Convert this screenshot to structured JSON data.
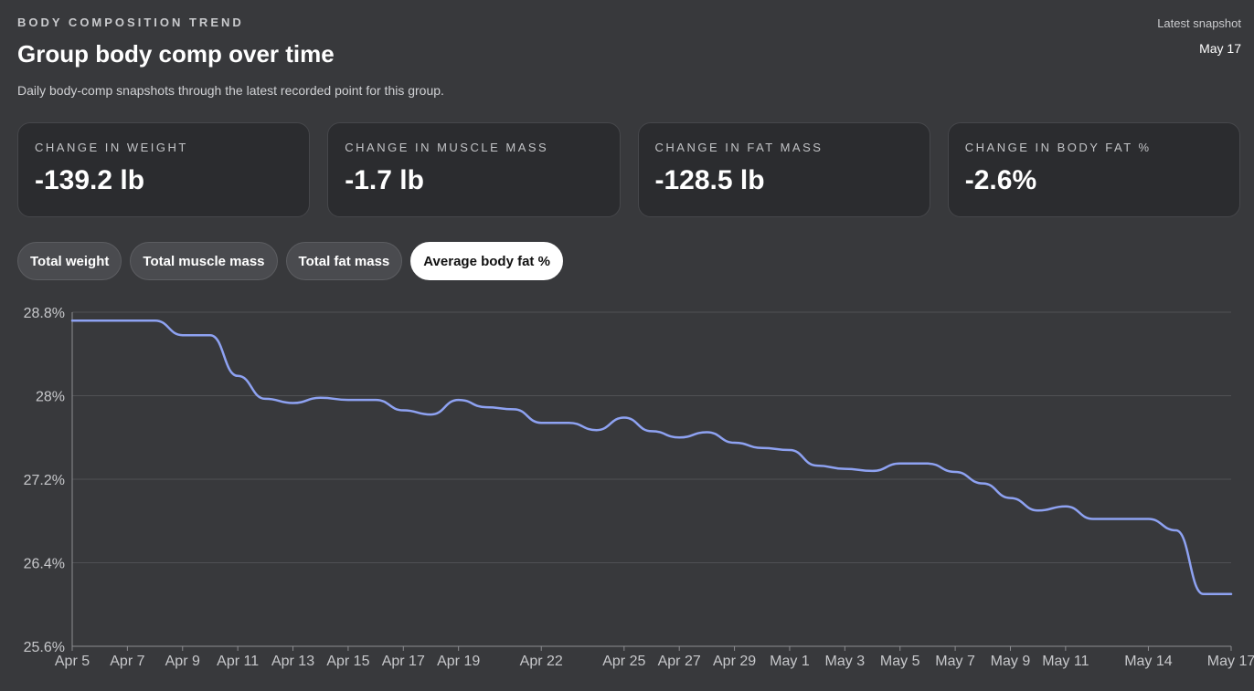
{
  "header": {
    "eyebrow": "BODY COMPOSITION TREND",
    "title": "Group body comp over time",
    "subtitle": "Daily body-comp snapshots through the latest recorded point for this group.",
    "snapshot_label": "Latest snapshot",
    "snapshot_value": "May 17"
  },
  "cards": [
    {
      "label": "CHANGE IN WEIGHT",
      "value": "-139.2 lb"
    },
    {
      "label": "CHANGE IN MUSCLE MASS",
      "value": "-1.7 lb"
    },
    {
      "label": "CHANGE IN FAT MASS",
      "value": "-128.5 lb"
    },
    {
      "label": "CHANGE IN BODY FAT %",
      "value": "-2.6%"
    }
  ],
  "tabs": [
    {
      "label": "Total weight",
      "active": false
    },
    {
      "label": "Total muscle mass",
      "active": false
    },
    {
      "label": "Total fat mass",
      "active": false
    },
    {
      "label": "Average body fat %",
      "active": true
    }
  ],
  "colors": {
    "line": "#8ea2f2",
    "grid": "#505155",
    "axis": "#8c8d91"
  },
  "chart_data": {
    "type": "line",
    "title": "",
    "xlabel": "",
    "ylabel": "",
    "ylim": [
      25.6,
      28.8
    ],
    "y_ticks": [
      {
        "value": 28.8,
        "label": "28.8%"
      },
      {
        "value": 28.0,
        "label": "28%"
      },
      {
        "value": 27.2,
        "label": "27.2%"
      },
      {
        "value": 26.4,
        "label": "26.4%"
      },
      {
        "value": 25.6,
        "label": "25.6%"
      }
    ],
    "x_labels": [
      "Apr 5",
      "Apr 7",
      "Apr 9",
      "Apr 11",
      "Apr 13",
      "Apr 15",
      "Apr 17",
      "Apr 19",
      "Apr 22",
      "Apr 25",
      "Apr 27",
      "Apr 29",
      "May 1",
      "May 3",
      "May 5",
      "May 7",
      "May 9",
      "May 11",
      "May 14",
      "May 17"
    ],
    "grid": true,
    "series": [
      {
        "values": [
          {
            "x": "Apr 5",
            "y": 28.72
          },
          {
            "x": "Apr 6",
            "y": 28.72
          },
          {
            "x": "Apr 7",
            "y": 28.72
          },
          {
            "x": "Apr 8",
            "y": 28.72
          },
          {
            "x": "Apr 9",
            "y": 28.58
          },
          {
            "x": "Apr 10",
            "y": 28.58
          },
          {
            "x": "Apr 11",
            "y": 28.19
          },
          {
            "x": "Apr 12",
            "y": 27.97
          },
          {
            "x": "Apr 13",
            "y": 27.93
          },
          {
            "x": "Apr 14",
            "y": 27.98
          },
          {
            "x": "Apr 15",
            "y": 27.96
          },
          {
            "x": "Apr 16",
            "y": 27.96
          },
          {
            "x": "Apr 17",
            "y": 27.86
          },
          {
            "x": "Apr 18",
            "y": 27.82
          },
          {
            "x": "Apr 19",
            "y": 27.96
          },
          {
            "x": "Apr 20",
            "y": 27.89
          },
          {
            "x": "Apr 21",
            "y": 27.87
          },
          {
            "x": "Apr 22",
            "y": 27.74
          },
          {
            "x": "Apr 23",
            "y": 27.74
          },
          {
            "x": "Apr 24",
            "y": 27.67
          },
          {
            "x": "Apr 25",
            "y": 27.79
          },
          {
            "x": "Apr 26",
            "y": 27.66
          },
          {
            "x": "Apr 27",
            "y": 27.6
          },
          {
            "x": "Apr 28",
            "y": 27.65
          },
          {
            "x": "Apr 29",
            "y": 27.55
          },
          {
            "x": "Apr 30",
            "y": 27.5
          },
          {
            "x": "May 1",
            "y": 27.48
          },
          {
            "x": "May 2",
            "y": 27.33
          },
          {
            "x": "May 3",
            "y": 27.3
          },
          {
            "x": "May 4",
            "y": 27.28
          },
          {
            "x": "May 5",
            "y": 27.35
          },
          {
            "x": "May 6",
            "y": 27.35
          },
          {
            "x": "May 7",
            "y": 27.27
          },
          {
            "x": "May 8",
            "y": 27.16
          },
          {
            "x": "May 9",
            "y": 27.02
          },
          {
            "x": "May 10",
            "y": 26.9
          },
          {
            "x": "May 11",
            "y": 26.94
          },
          {
            "x": "May 12",
            "y": 26.82
          },
          {
            "x": "May 13",
            "y": 26.82
          },
          {
            "x": "May 14",
            "y": 26.82
          },
          {
            "x": "May 15",
            "y": 26.71
          },
          {
            "x": "May 16",
            "y": 26.1
          },
          {
            "x": "May 17",
            "y": 26.1
          }
        ]
      }
    ]
  }
}
